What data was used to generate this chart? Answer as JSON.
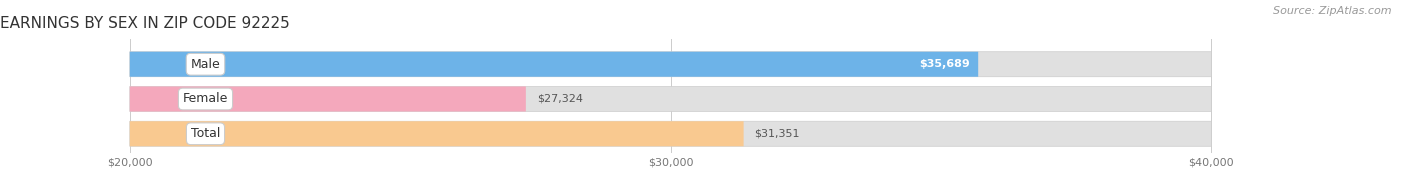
{
  "title": "EARNINGS BY SEX IN ZIP CODE 92225",
  "source": "Source: ZipAtlas.com",
  "categories": [
    "Male",
    "Female",
    "Total"
  ],
  "values": [
    35689,
    27324,
    31351
  ],
  "bar_colors": [
    "#6db3e8",
    "#f4a8bc",
    "#f9c990"
  ],
  "bar_bg_color": "#e0e0e0",
  "xmin": 20000,
  "xmax": 40000,
  "xticks": [
    20000,
    30000,
    40000
  ],
  "xtick_labels": [
    "$20,000",
    "$30,000",
    "$40,000"
  ],
  "value_labels": [
    "$35,689",
    "$27,324",
    "$31,351"
  ],
  "value_inside": [
    true,
    false,
    false
  ],
  "figsize": [
    14.06,
    1.96
  ],
  "dpi": 100,
  "title_fontsize": 11,
  "source_fontsize": 8,
  "label_fontsize": 9,
  "value_fontsize": 8,
  "tick_fontsize": 8,
  "bar_height": 0.72
}
